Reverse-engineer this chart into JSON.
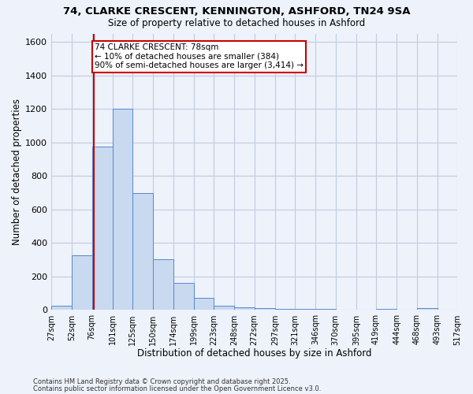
{
  "title1": "74, CLARKE CRESCENT, KENNINGTON, ASHFORD, TN24 9SA",
  "title2": "Size of property relative to detached houses in Ashford",
  "xlabel": "Distribution of detached houses by size in Ashford",
  "ylabel": "Number of detached properties",
  "footnote1": "Contains HM Land Registry data © Crown copyright and database right 2025.",
  "footnote2": "Contains public sector information licensed under the Open Government Licence v3.0.",
  "bin_edges": [
    27,
    52,
    76,
    101,
    125,
    150,
    174,
    199,
    223,
    248,
    272,
    297,
    321,
    346,
    370,
    395,
    419,
    444,
    468,
    493,
    517
  ],
  "bin_labels": [
    "27sqm",
    "52sqm",
    "76sqm",
    "101sqm",
    "125sqm",
    "150sqm",
    "174sqm",
    "199sqm",
    "223sqm",
    "248sqm",
    "272sqm",
    "297sqm",
    "321sqm",
    "346sqm",
    "370sqm",
    "395sqm",
    "419sqm",
    "444sqm",
    "468sqm",
    "493sqm",
    "517sqm"
  ],
  "bar_heights": [
    25,
    325,
    975,
    1200,
    700,
    305,
    160,
    75,
    25,
    15,
    10,
    5,
    5,
    5,
    0,
    0,
    5,
    0,
    10,
    0
  ],
  "bar_color": "#c8d9f0",
  "bar_edge_color": "#5588cc",
  "vline_x": 78,
  "vline_color": "#cc0000",
  "ylim": [
    0,
    1650
  ],
  "ytick_step": 200,
  "annotation_text": "74 CLARKE CRESCENT: 78sqm\n← 10% of detached houses are smaller (384)\n90% of semi-detached houses are larger (3,414) →",
  "annotation_box_color": "#ffffff",
  "annotation_box_edge": "#cc0000",
  "bg_color": "#eef2fb",
  "grid_color": "#c0ccdd"
}
